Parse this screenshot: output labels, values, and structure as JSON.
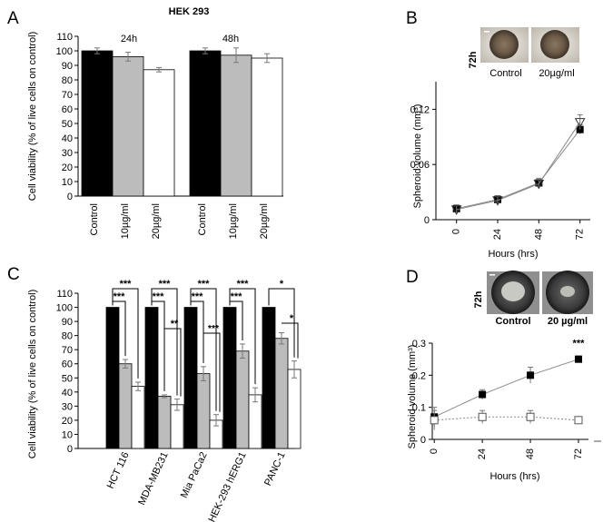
{
  "colors": {
    "black": "#000000",
    "gray": "#bcbcbc",
    "white": "#ffffff",
    "error": "#777777",
    "line": "#888888"
  },
  "chart_data": [
    {
      "panel": "A",
      "type": "bar",
      "title": "HEK 293",
      "ylabel": "Cell viability (% of live cells on control)",
      "ylim": [
        0,
        110
      ],
      "yticks": [
        0,
        10,
        20,
        30,
        40,
        50,
        60,
        70,
        80,
        90,
        100,
        110
      ],
      "grid": false,
      "groups": [
        {
          "label": "24h",
          "categories": [
            "Control",
            "10µg/ml",
            "20µg/ml"
          ],
          "values": [
            100,
            96,
            87
          ],
          "errors": [
            2,
            3,
            1.5
          ]
        },
        {
          "label": "48h",
          "categories": [
            "Control",
            "10µg/ml",
            "20µg/ml"
          ],
          "values": [
            100,
            97,
            95
          ],
          "errors": [
            2,
            5,
            3
          ]
        }
      ]
    },
    {
      "panel": "B",
      "type": "line",
      "image_label": "72h",
      "image_captions": [
        "Control",
        "20µg/ml"
      ],
      "xlabel": "Hours (hrs)",
      "ylabel": "Spheroid volume (mm³)",
      "x": [
        0,
        24,
        48,
        72
      ],
      "xticks": [
        "0",
        "24",
        "48",
        "72"
      ],
      "ylim": [
        0,
        0.15
      ],
      "yticks": [
        "0",
        "0.06",
        "0.12"
      ],
      "series": [
        {
          "name": "Control",
          "marker": "square-filled",
          "values": [
            0.012,
            0.022,
            0.04,
            0.098
          ],
          "errors": [
            0.004,
            0.004,
            0.005,
            0.005
          ]
        },
        {
          "name": "20µg/ml",
          "marker": "triangle-open",
          "values": [
            0.011,
            0.021,
            0.039,
            0.106
          ],
          "errors": [
            0.004,
            0.004,
            0.005,
            0.008
          ]
        }
      ]
    },
    {
      "panel": "C",
      "type": "bar",
      "ylabel": "Cell viability (% of live cells on control)",
      "ylim": [
        0,
        110
      ],
      "yticks": [
        0,
        10,
        20,
        30,
        40,
        50,
        60,
        70,
        80,
        90,
        100,
        110
      ],
      "categories": [
        "HCT 116",
        "MDA-MB231",
        "Mia PaCa2",
        "HEK-293 hERG1",
        "PANC-1"
      ],
      "series": [
        {
          "name": "Control",
          "values": [
            100,
            100,
            100,
            100,
            100
          ],
          "errors": [
            0,
            0,
            0,
            0,
            0
          ]
        },
        {
          "name": "10µg/ml",
          "values": [
            60,
            37,
            53,
            69,
            78
          ],
          "errors": [
            3,
            1,
            5,
            5,
            4
          ]
        },
        {
          "name": "20µg/ml",
          "values": [
            44,
            31,
            20,
            38,
            56
          ],
          "errors": [
            3,
            4,
            4,
            5,
            6
          ]
        }
      ],
      "significance": [
        [
          "***",
          "***"
        ],
        [
          "***",
          "***",
          "**"
        ],
        [
          "***",
          "***"
        ],
        [
          "***",
          "***"
        ],
        [
          "*",
          "*"
        ]
      ]
    },
    {
      "panel": "D",
      "type": "line",
      "image_label": "72h",
      "image_captions": [
        "Control",
        "20 µg/ml"
      ],
      "xlabel": "Hours (hrs)",
      "ylabel": "Spheroid volume (mm³)",
      "x": [
        0,
        24,
        48,
        72
      ],
      "xticks": [
        "0",
        "24",
        "48",
        "72"
      ],
      "ylim": [
        0,
        0.3
      ],
      "yticks": [
        "0",
        "0.1",
        "0.2",
        "0.3"
      ],
      "annotation": "***",
      "series": [
        {
          "name": "Control",
          "marker": "square-filled",
          "values": [
            0.07,
            0.14,
            0.2,
            0.25
          ],
          "errors": [
            0.03,
            0.015,
            0.025,
            0.01
          ]
        },
        {
          "name": "20 µg/ml",
          "marker": "square-open",
          "values": [
            0.06,
            0.07,
            0.07,
            0.06
          ],
          "errors": [
            0.03,
            0.02,
            0.02,
            0.01
          ]
        }
      ]
    }
  ]
}
